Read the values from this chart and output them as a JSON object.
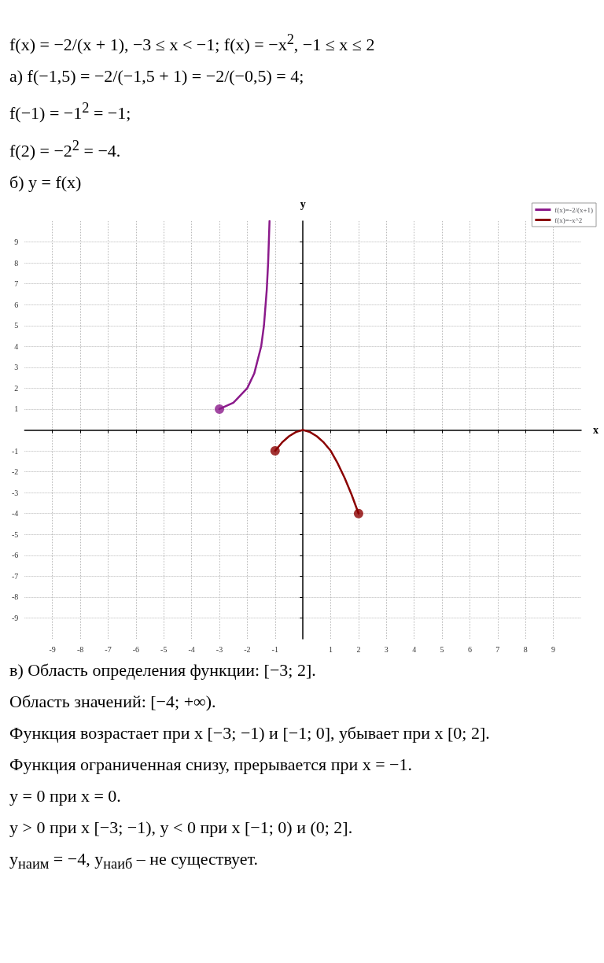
{
  "chart_data": {
    "type": "line",
    "annotations": [
      "f(x) = −2/(x + 1),   −3 ≤ x < −1;   f(x) = −x$^{2}$,   −1 ≤ x ≤ 2",
      "а) f(−1,5) = −2/(−1,5 + 1) = −2/(−0,5) = 4;",
      "f(−1) = −1$^{2}$ = −1;",
      "f(2) = −2$^{2}$ = −4.",
      "б) y = f(x)",
      "в) Область определения функции: [−3; 2].",
      "Область значений: [−4; +∞).",
      "Функция возрастает при x [−3; −1) и [−1; 0], убывает при x [0; 2].",
      "Функция ограниченная снизу, прерывается при x = −1.",
      "y = 0 при x = 0.",
      "y > 0 при x [−3; −1),      y < 0 при x [−1; 0) и (0; 2].",
      "y$_{наим}$ = −4,      y$_{наиб}$ – не существует."
    ],
    "xlabel": "x",
    "ylabel": "y",
    "xlim": [
      -10,
      10
    ],
    "ylim": [
      -10,
      10
    ],
    "xticks": [
      -9,
      -8,
      -7,
      -6,
      -5,
      -4,
      -3,
      -2,
      -1,
      1,
      2,
      3,
      4,
      5,
      6,
      7,
      8,
      9
    ],
    "yticks": [
      -9,
      -8,
      -7,
      -6,
      -5,
      -4,
      -3,
      -2,
      -1,
      1,
      2,
      3,
      4,
      5,
      6,
      7,
      8,
      9
    ],
    "grid": true,
    "legend": "top right",
    "series": [
      {
        "name": "f(x)=-2/(x+1)",
        "color": "#8b1a8b",
        "x": [
          -3,
          -2.5,
          -2,
          -1.75,
          -1.5,
          -1.4,
          -1.3,
          -1.25,
          -1.2
        ],
        "values": [
          1,
          1.3,
          2,
          2.7,
          4,
          5,
          6.7,
          8,
          10
        ]
      },
      {
        "name": "f(x)=-x^2",
        "color": "#8b0000",
        "x": [
          -1,
          -0.75,
          -0.5,
          -0.25,
          0,
          0.25,
          0.5,
          0.75,
          1,
          1.25,
          1.5,
          1.75,
          2
        ],
        "values": [
          -1,
          -0.6,
          -0.3,
          -0.1,
          0,
          -0.1,
          -0.3,
          -0.6,
          -1,
          -1.6,
          -2.3,
          -3.1,
          -4
        ]
      },
      {
        "type": "scatter",
        "color": "#8b1a8b",
        "x": [
          -3
        ],
        "values": [
          1
        ]
      },
      {
        "type": "scatter",
        "color": "#8b0000",
        "x": [
          -1,
          2
        ],
        "values": [
          -1,
          -4
        ]
      }
    ]
  }
}
